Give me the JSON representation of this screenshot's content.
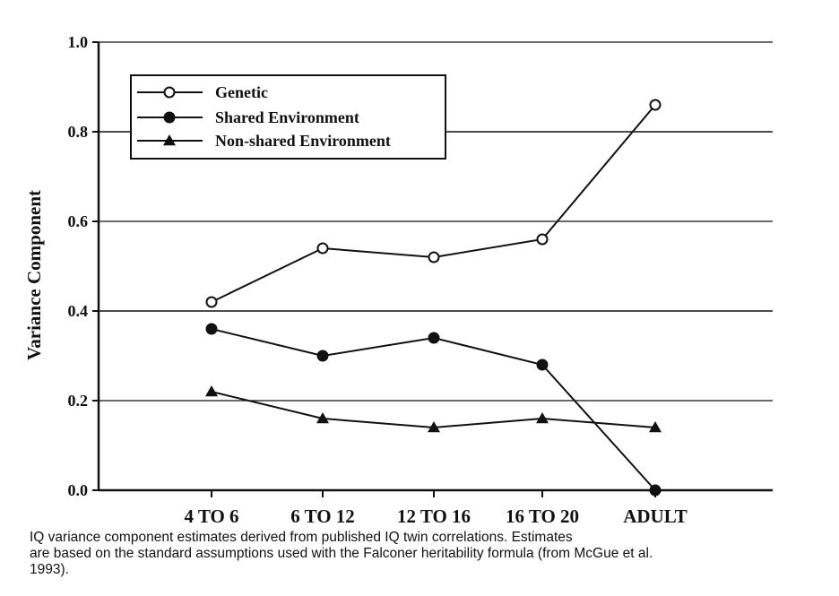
{
  "chart_data": {
    "type": "line",
    "categories": [
      "4 TO 6",
      "6 TO 12",
      "12 TO 16",
      "16 TO 20",
      "ADULT"
    ],
    "series": [
      {
        "name": "Genetic",
        "marker": "open-circle",
        "values": [
          0.42,
          0.54,
          0.52,
          0.56,
          0.86
        ]
      },
      {
        "name": "Shared Environment",
        "marker": "filled-circle",
        "values": [
          0.36,
          0.3,
          0.34,
          0.28,
          0.0
        ]
      },
      {
        "name": "Non-shared Environment",
        "marker": "filled-triangle",
        "values": [
          0.22,
          0.16,
          0.14,
          0.16,
          0.14
        ]
      }
    ],
    "title": "",
    "xlabel": "",
    "ylabel": "Variance Component",
    "ylim": [
      0.0,
      1.0
    ],
    "yticks": [
      "0.0",
      "0.2",
      "0.4",
      "0.6",
      "0.8",
      "1.0"
    ],
    "grid": "horizontal",
    "legend_position": "top-left"
  },
  "caption": {
    "line1": "IQ variance component estimates derived from published IQ twin correlations. Estimates",
    "line2": "are based on the standard assumptions used with the Falconer heritability formula (from McGue et al.",
    "line3": "1993)."
  }
}
